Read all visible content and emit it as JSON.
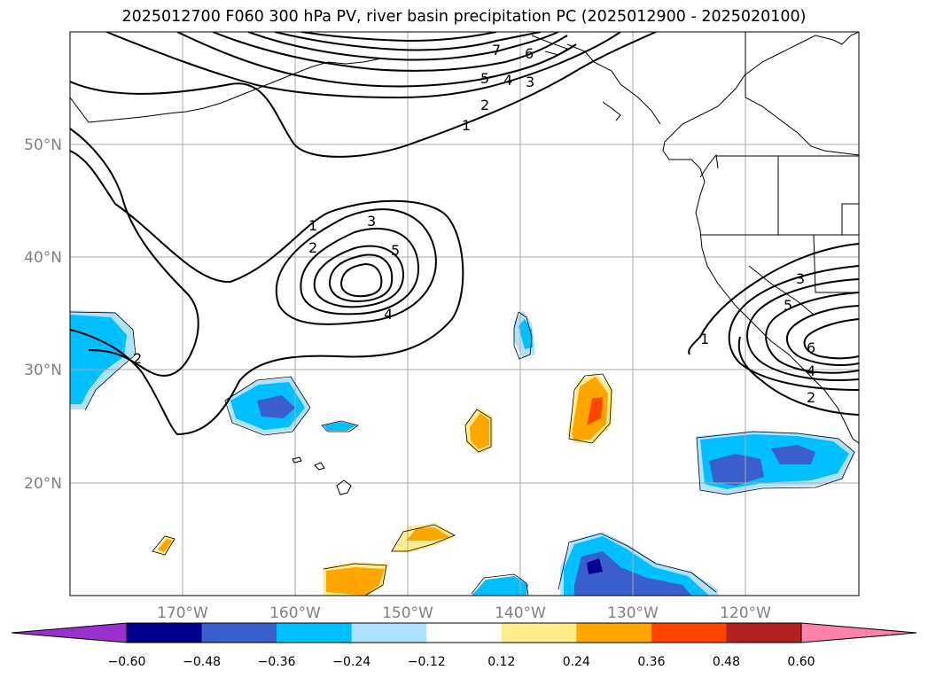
{
  "title": "2025012700 F060 300 hPa PV, river basin precipitation PC (2025012900 - 2025020100)",
  "map": {
    "lon_range": [
      -180,
      -110
    ],
    "lat_range": [
      10,
      60
    ],
    "lon_labels": [
      "170°W",
      "160°W",
      "150°W",
      "140°W",
      "130°W",
      "120°W"
    ],
    "lat_labels": [
      "50°N",
      "40°N",
      "30°N",
      "20°N"
    ],
    "gridlines": true,
    "coastlines": true
  },
  "colorbar": {
    "ticks": [
      "−0.60",
      "−0.48",
      "−0.36",
      "−0.24",
      "−0.12",
      "0.12",
      "0.24",
      "0.36",
      "0.48",
      "0.60"
    ],
    "bins": [
      {
        "color": "#9932cc"
      },
      {
        "color": "#00008b"
      },
      {
        "color": "#3a5fcd"
      },
      {
        "color": "#00bfff"
      },
      {
        "color": "#b0e2ff"
      },
      {
        "color": "#ffffff"
      },
      {
        "color": "#ffec8b"
      },
      {
        "color": "#ffa500"
      },
      {
        "color": "#ff4500"
      },
      {
        "color": "#b22222"
      },
      {
        "color": "#ff82ab"
      }
    ]
  },
  "contour_labels": [
    "1",
    "2",
    "4",
    "5",
    "6",
    "7",
    "3",
    "1",
    "2",
    "3",
    "4",
    "5",
    "1",
    "2",
    "3",
    "4",
    "5",
    "6",
    "2"
  ]
}
